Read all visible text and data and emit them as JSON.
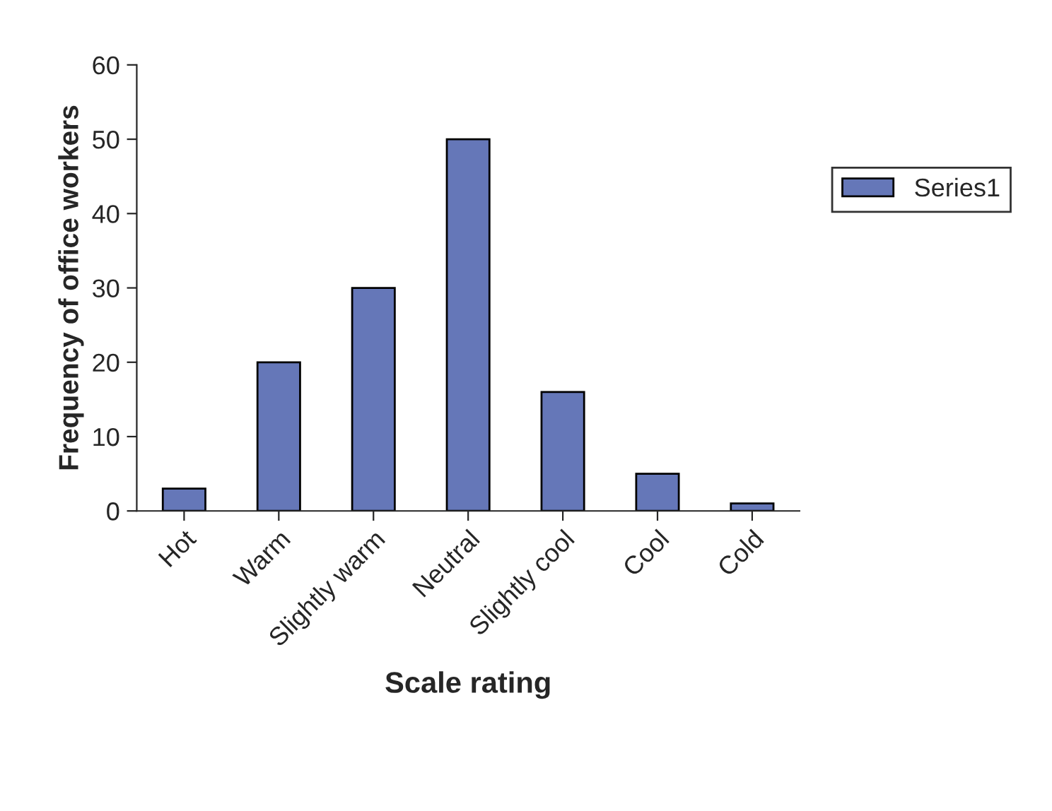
{
  "chart_data": {
    "type": "bar",
    "xlabel": "Scale rating",
    "ylabel": "Frequency of office workers",
    "categories": [
      "Hot",
      "Warm",
      "Slightly warm",
      "Neutral",
      "Slightly cool",
      "Cool",
      "Cold"
    ],
    "series": [
      {
        "name": "Series1",
        "color": "#6577b8",
        "values": [
          3,
          20,
          30,
          50,
          16,
          5,
          1
        ]
      }
    ],
    "ylim": [
      0,
      60
    ],
    "yticks": [
      0,
      10,
      20,
      30,
      40,
      50,
      60
    ],
    "grid": false,
    "legend": "right"
  }
}
